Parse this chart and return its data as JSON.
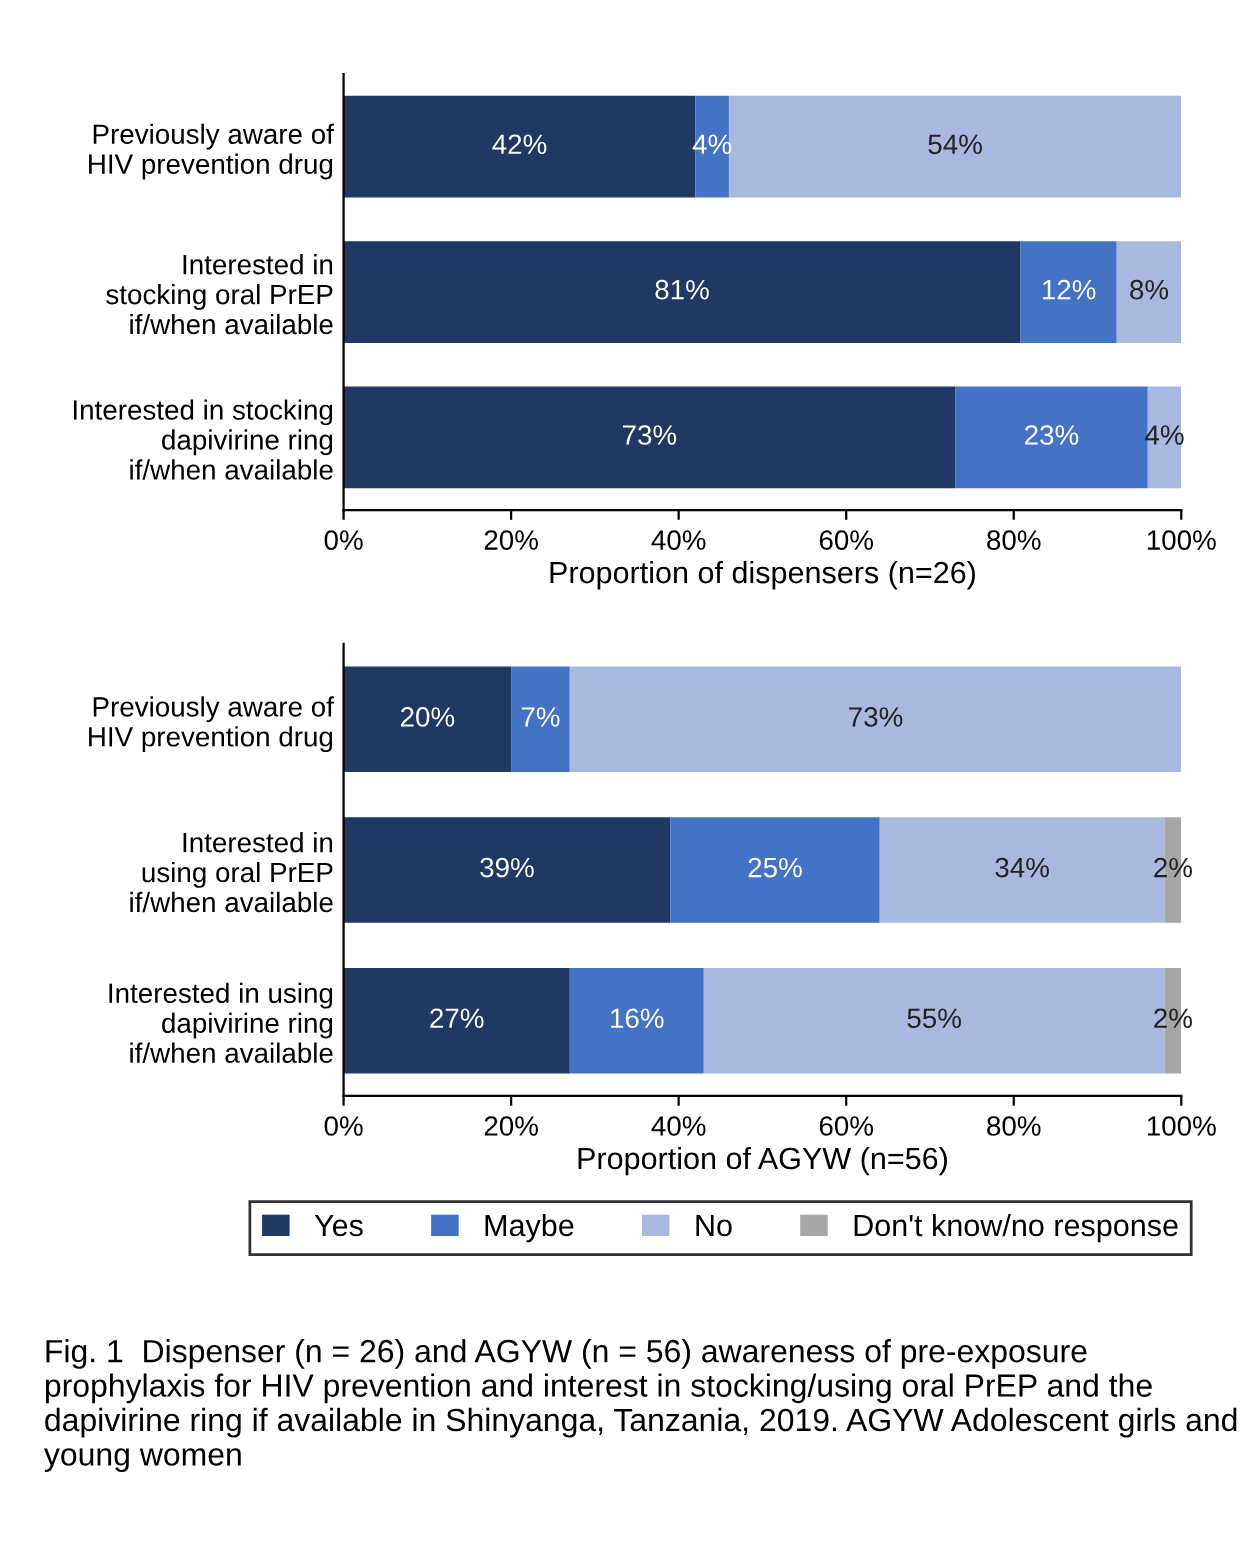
{
  "chart_data": [
    {
      "type": "bar",
      "orientation": "horizontal",
      "stacked": true,
      "xlabel": "Proportion of dispensers (n=26)",
      "categories": [
        "Previously aware of\nHIV prevention drug",
        "Interested in\nstocking oral PrEP\nif/when available",
        "Interested in stocking\ndapivirine ring\nif/when available"
      ],
      "series": [
        {
          "color": "#1f3864",
          "values": [
            42,
            80.8,
            73
          ],
          "value_labels": [
            "42%",
            "81%",
            "73%"
          ]
        },
        {
          "color": "#4472c4",
          "values": [
            4,
            11.5,
            23
          ],
          "value_labels": [
            "4%",
            "12%",
            "23%"
          ]
        },
        {
          "color": "#a9b8de",
          "values": [
            54,
            7.7,
            4
          ],
          "value_labels": [
            "54%",
            "8%",
            "4%"
          ]
        }
      ],
      "xlim": [
        0,
        100
      ],
      "xticks": [
        {
          "value": 0,
          "label": "0%"
        },
        {
          "value": 20,
          "label": "20%"
        },
        {
          "value": 40,
          "label": "40%"
        },
        {
          "value": 60,
          "label": "60%"
        },
        {
          "value": 80,
          "label": "80%"
        },
        {
          "value": 100,
          "label": "100%"
        }
      ],
      "grid": false,
      "legend": false
    },
    {
      "type": "bar",
      "orientation": "horizontal",
      "stacked": true,
      "xlabel": "Proportion of AGYW (n=56)",
      "categories": [
        "Previously aware of\nHIV prevention drug",
        "Interested in\nusing oral PrEP\nif/when available",
        "Interested in using\ndapivirine ring\nif/when available"
      ],
      "series": [
        {
          "name": "Yes",
          "color": "#1f3864",
          "values": [
            20,
            39,
            27
          ],
          "value_labels": [
            "20%",
            "39%",
            "27%"
          ]
        },
        {
          "name": "Maybe",
          "color": "#4472c4",
          "values": [
            7,
            25,
            16
          ],
          "value_labels": [
            "7%",
            "25%",
            "16%"
          ]
        },
        {
          "name": "No",
          "color": "#a9b8de",
          "values": [
            73,
            34,
            55
          ],
          "value_labels": [
            "73%",
            "34%",
            "55%"
          ]
        },
        {
          "name": "Don't know/no response",
          "color": "#a6a6a6",
          "values": [
            null,
            2,
            2
          ],
          "value_labels": [
            null,
            "2%",
            "2%"
          ]
        }
      ],
      "xlim": [
        0,
        100
      ],
      "xticks": [
        {
          "value": 0,
          "label": "0%"
        },
        {
          "value": 20,
          "label": "20%"
        },
        {
          "value": 40,
          "label": "40%"
        },
        {
          "value": 60,
          "label": "60%"
        },
        {
          "value": 80,
          "label": "80%"
        },
        {
          "value": 100,
          "label": "100%"
        }
      ],
      "grid": false,
      "legend": "bottom",
      "annotations": [
        "Fig. 1  Dispenser (n = 26) and AGYW (n = 56) awareness of pre-exposure prophylaxis for HIV prevention and interest in stocking/using oral PrEP and the dapivirine ring if available in Shinyanga, Tanzania, 2019. AGYW Adolescent girls and young women"
      ]
    }
  ]
}
